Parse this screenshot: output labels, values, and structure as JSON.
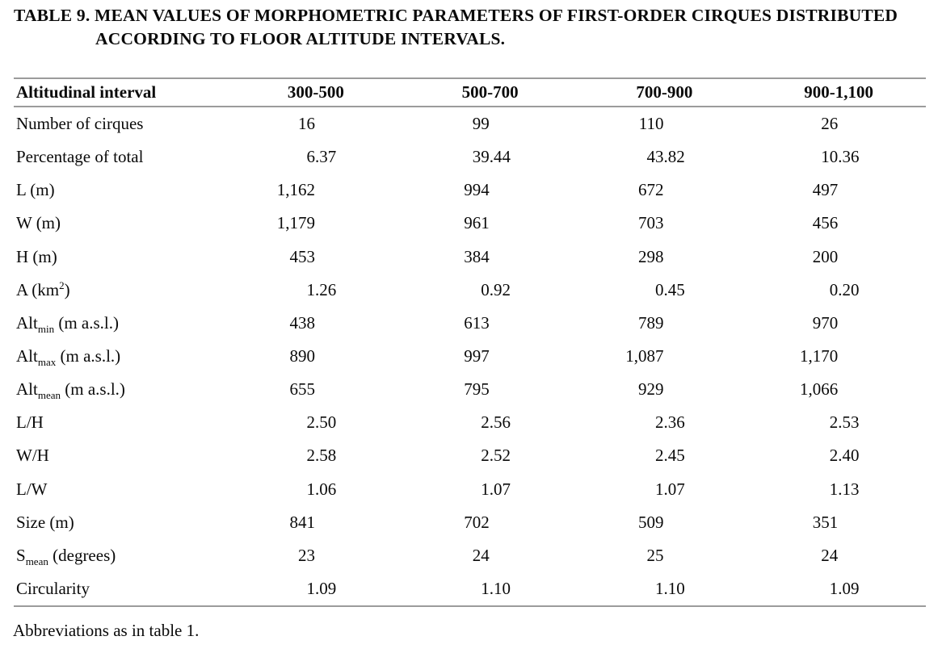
{
  "title": {
    "line1": "TABLE 9. MEAN VALUES OF MORPHOMETRIC PARAMETERS OF FIRST-ORDER CIRQUES DISTRIBUTED",
    "line2": "ACCORDING TO FLOOR ALTITUDE INTERVALS."
  },
  "table": {
    "header": {
      "label": "Altitudinal interval",
      "columns": [
        "300-500",
        "500-700",
        "700-900",
        "900-1,100"
      ]
    },
    "rows": [
      {
        "label": "Number of cirques",
        "values": [
          "16",
          "99",
          "110",
          "26"
        ]
      },
      {
        "label": "Percentage of total",
        "values": [
          "6.37",
          "39.44",
          "43.82",
          "10.36"
        ]
      },
      {
        "label": "L (m)",
        "values": [
          "1,162",
          "994",
          "672",
          "497"
        ]
      },
      {
        "label": "W (m)",
        "values": [
          "1,179",
          "961",
          "703",
          "456"
        ]
      },
      {
        "label": "H (m)",
        "values": [
          "453",
          "384",
          "298",
          "200"
        ]
      },
      {
        "label": "A (km^{2})",
        "values": [
          "1.26",
          "0.92",
          "0.45",
          "0.20"
        ]
      },
      {
        "label": "Alt_{min} (m a.s.l.)",
        "values": [
          "438",
          "613",
          "789",
          "970"
        ]
      },
      {
        "label": "Alt_{max} (m a.s.l.)",
        "values": [
          "890",
          "997",
          "1,087",
          "1,170"
        ]
      },
      {
        "label": "Alt_{mean} (m a.s.l.)",
        "values": [
          "655",
          "795",
          "929",
          "1,066"
        ]
      },
      {
        "label": "L/H",
        "values": [
          "2.50",
          "2.56",
          "2.36",
          "2.53"
        ]
      },
      {
        "label": "W/H",
        "values": [
          "2.58",
          "2.52",
          "2.45",
          "2.40"
        ]
      },
      {
        "label": "L/W",
        "values": [
          "1.06",
          "1.07",
          "1.07",
          "1.13"
        ]
      },
      {
        "label": "Size (m)",
        "values": [
          "841",
          "702",
          "509",
          "351"
        ]
      },
      {
        "label": "S_{mean} (degrees)",
        "values": [
          "23",
          "24",
          "25",
          "24"
        ]
      },
      {
        "label": "Circularity",
        "values": [
          "1.09",
          "1.10",
          "1.10",
          "1.09"
        ]
      }
    ]
  },
  "footnote": "Abbreviations as in table 1.",
  "colors": {
    "background": "#ffffff",
    "text": "#0a0a0a",
    "rule": "#9b9b9b"
  }
}
